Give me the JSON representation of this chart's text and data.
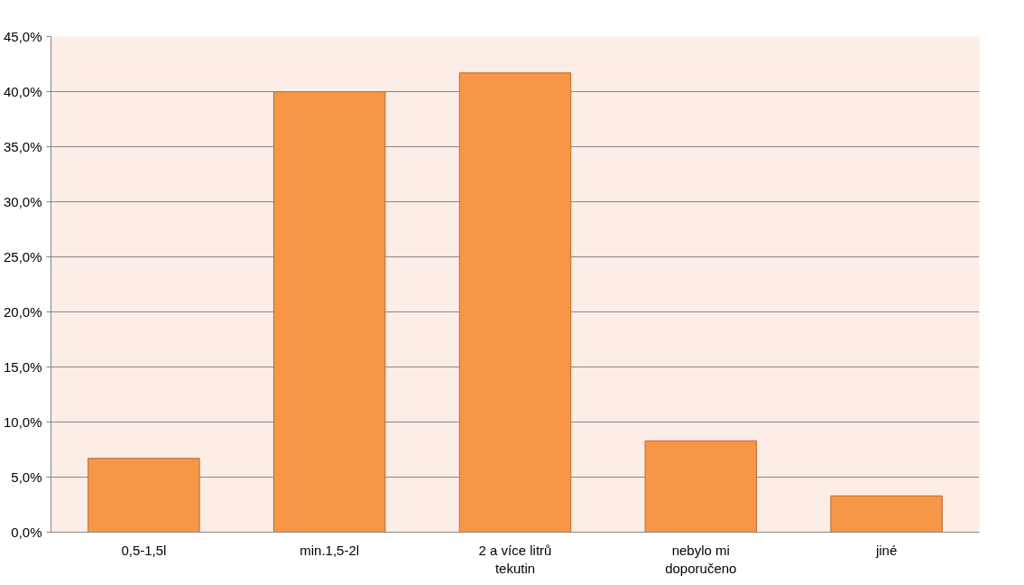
{
  "chart_data": {
    "type": "bar",
    "categories": [
      "0,5-1,5l",
      "min.1,5-2l",
      "2 a více litrů tekutin",
      "nebylo mi doporučeno",
      "jiné"
    ],
    "values": [
      6.7,
      40.0,
      41.7,
      8.3,
      3.3
    ],
    "color": "#f79646",
    "ylim": [
      0,
      45
    ],
    "yticks": [
      {
        "value": 0,
        "label": "0,0%"
      },
      {
        "value": 5,
        "label": "5,0%"
      },
      {
        "value": 10,
        "label": "10,0%"
      },
      {
        "value": 15,
        "label": "15,0%"
      },
      {
        "value": 20,
        "label": "20,0%"
      },
      {
        "value": 25,
        "label": "25,0%"
      },
      {
        "value": 30,
        "label": "30,0%"
      },
      {
        "value": 35,
        "label": "35,0%"
      },
      {
        "value": 40,
        "label": "40,0%"
      },
      {
        "value": 45,
        "label": "45,0%"
      }
    ],
    "grid": "y"
  }
}
